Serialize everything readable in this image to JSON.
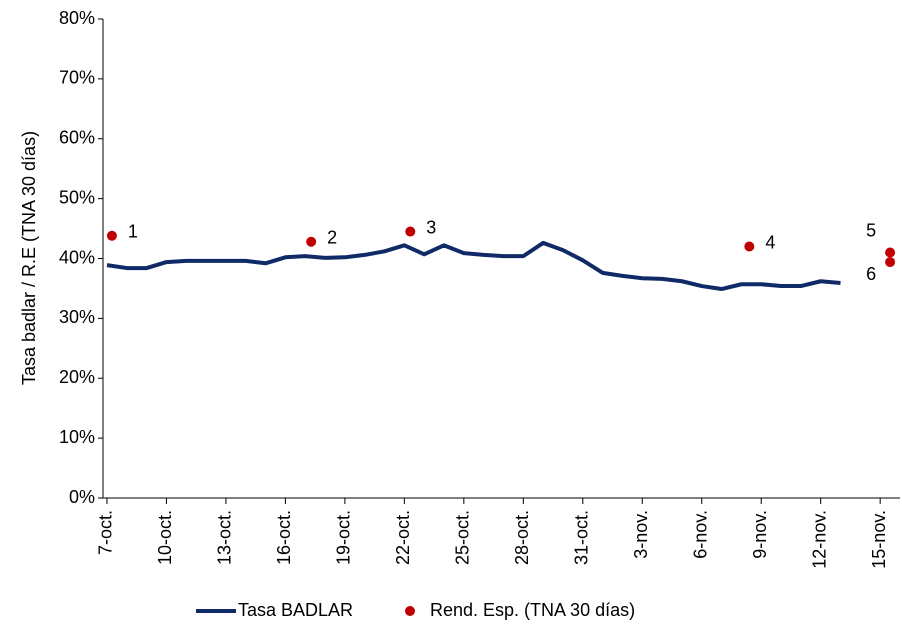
{
  "chart_data": {
    "type": "line",
    "ylabel": "Tasa badlar / R.E (TNA 30 días)",
    "xlim": [
      -0.2,
      40
    ],
    "xticks": [
      {
        "value": 0,
        "label": "7-oct."
      },
      {
        "value": 3,
        "label": "10-oct."
      },
      {
        "value": 6,
        "label": "13-oct."
      },
      {
        "value": 9,
        "label": "16-oct."
      },
      {
        "value": 12,
        "label": "19-oct."
      },
      {
        "value": 15,
        "label": "22-oct."
      },
      {
        "value": 18,
        "label": "25-oct."
      },
      {
        "value": 21,
        "label": "28-oct."
      },
      {
        "value": 24,
        "label": "31-oct."
      },
      {
        "value": 27,
        "label": "3-nov."
      },
      {
        "value": 30,
        "label": "6-nov."
      },
      {
        "value": 33,
        "label": "9-nov."
      },
      {
        "value": 36,
        "label": "12-nov."
      },
      {
        "value": 39,
        "label": "15-nov."
      }
    ],
    "ylim": [
      0,
      80
    ],
    "yticks": [
      {
        "value": 0,
        "label": "0%"
      },
      {
        "value": 10,
        "label": "10%"
      },
      {
        "value": 20,
        "label": "20%"
      },
      {
        "value": 30,
        "label": "30%"
      },
      {
        "value": 40,
        "label": "40%"
      },
      {
        "value": 50,
        "label": "50%"
      },
      {
        "value": 60,
        "label": "60%"
      },
      {
        "value": 70,
        "label": "70%"
      },
      {
        "value": 80,
        "label": "80%"
      }
    ],
    "grid": false,
    "legend": "bottom",
    "series": [
      {
        "name": "Tasa BADLAR",
        "type": "line",
        "color": "#0f2a66",
        "x": [
          0,
          1,
          2,
          3,
          4,
          5,
          6,
          7,
          8,
          9,
          10,
          11,
          12,
          13,
          14,
          15,
          16,
          17,
          18,
          19,
          20,
          21,
          22,
          23,
          24,
          25,
          26,
          27,
          28,
          29,
          30,
          31,
          32,
          33,
          34,
          35,
          36,
          37
        ],
        "values": [
          38.9,
          38.4,
          38.4,
          39.4,
          39.6,
          39.6,
          39.6,
          39.6,
          39.2,
          40.2,
          40.4,
          40.1,
          40.2,
          40.6,
          41.2,
          42.2,
          40.7,
          42.2,
          40.9,
          40.6,
          40.4,
          40.4,
          42.6,
          41.4,
          39.7,
          37.6,
          37.1,
          36.7,
          36.6,
          36.2,
          35.4,
          34.9,
          35.7,
          35.7,
          35.4,
          35.4,
          36.2,
          35.9
        ]
      },
      {
        "name": "Rend. Esp. (TNA 30 días)",
        "type": "scatter",
        "color": "#c00000",
        "x": [
          0.25,
          10.3,
          15.3,
          32.4,
          39.5,
          39.5
        ],
        "values": [
          43.8,
          42.8,
          44.5,
          42.0,
          41.0,
          39.4
        ],
        "labels": [
          "1",
          "2",
          "3",
          "4",
          "5",
          "6"
        ]
      }
    ]
  }
}
